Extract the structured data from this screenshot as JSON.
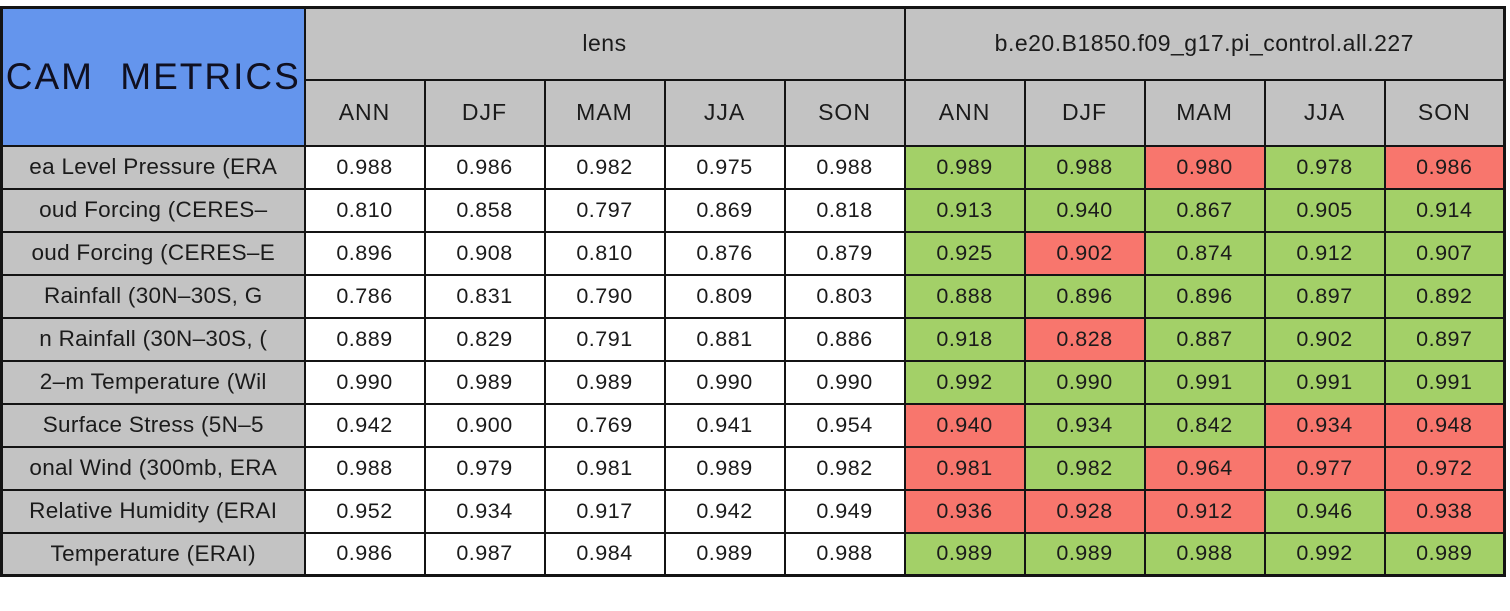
{
  "colors": {
    "title_bg": "#6495ed",
    "header_bg": "#c3c3c3",
    "neutral": "#ffffff",
    "good": "#a3d068",
    "bad": "#f8766d",
    "border": "#141414"
  },
  "chart_data": {
    "type": "table",
    "title": "CAM METRICS",
    "column_groups": [
      "lens",
      "b.e20.B1850.f09_g17.pi_control.all.227"
    ],
    "seasons": [
      "ANN",
      "DJF",
      "MAM",
      "JJA",
      "SON"
    ],
    "value_color_legend": {
      "good": "green",
      "bad": "red"
    },
    "rows": [
      {
        "label": "ea Level Pressure (ERA",
        "lens": [
          "0.988",
          "0.986",
          "0.982",
          "0.975",
          "0.988"
        ],
        "model": [
          "0.989",
          "0.988",
          "0.980",
          "0.978",
          "0.986"
        ],
        "model_colors": [
          "good",
          "good",
          "bad",
          "good",
          "bad"
        ]
      },
      {
        "label": "oud Forcing (CERES–",
        "lens": [
          "0.810",
          "0.858",
          "0.797",
          "0.869",
          "0.818"
        ],
        "model": [
          "0.913",
          "0.940",
          "0.867",
          "0.905",
          "0.914"
        ],
        "model_colors": [
          "good",
          "good",
          "good",
          "good",
          "good"
        ]
      },
      {
        "label": "oud Forcing (CERES–E",
        "lens": [
          "0.896",
          "0.908",
          "0.810",
          "0.876",
          "0.879"
        ],
        "model": [
          "0.925",
          "0.902",
          "0.874",
          "0.912",
          "0.907"
        ],
        "model_colors": [
          "good",
          "bad",
          "good",
          "good",
          "good"
        ]
      },
      {
        "label": "Rainfall (30N–30S, G",
        "lens": [
          "0.786",
          "0.831",
          "0.790",
          "0.809",
          "0.803"
        ],
        "model": [
          "0.888",
          "0.896",
          "0.896",
          "0.897",
          "0.892"
        ],
        "model_colors": [
          "good",
          "good",
          "good",
          "good",
          "good"
        ]
      },
      {
        "label": "n Rainfall (30N–30S, (",
        "lens": [
          "0.889",
          "0.829",
          "0.791",
          "0.881",
          "0.886"
        ],
        "model": [
          "0.918",
          "0.828",
          "0.887",
          "0.902",
          "0.897"
        ],
        "model_colors": [
          "good",
          "bad",
          "good",
          "good",
          "good"
        ]
      },
      {
        "label": "2–m Temperature (Wil",
        "lens": [
          "0.990",
          "0.989",
          "0.989",
          "0.990",
          "0.990"
        ],
        "model": [
          "0.992",
          "0.990",
          "0.991",
          "0.991",
          "0.991"
        ],
        "model_colors": [
          "good",
          "good",
          "good",
          "good",
          "good"
        ]
      },
      {
        "label": "Surface Stress (5N–5",
        "lens": [
          "0.942",
          "0.900",
          "0.769",
          "0.941",
          "0.954"
        ],
        "model": [
          "0.940",
          "0.934",
          "0.842",
          "0.934",
          "0.948"
        ],
        "model_colors": [
          "bad",
          "good",
          "good",
          "bad",
          "bad"
        ]
      },
      {
        "label": "onal Wind (300mb, ERA",
        "lens": [
          "0.988",
          "0.979",
          "0.981",
          "0.989",
          "0.982"
        ],
        "model": [
          "0.981",
          "0.982",
          "0.964",
          "0.977",
          "0.972"
        ],
        "model_colors": [
          "bad",
          "good",
          "bad",
          "bad",
          "bad"
        ]
      },
      {
        "label": "Relative Humidity (ERAI",
        "lens": [
          "0.952",
          "0.934",
          "0.917",
          "0.942",
          "0.949"
        ],
        "model": [
          "0.936",
          "0.928",
          "0.912",
          "0.946",
          "0.938"
        ],
        "model_colors": [
          "bad",
          "bad",
          "bad",
          "good",
          "bad"
        ]
      },
      {
        "label": "Temperature (ERAI)",
        "lens": [
          "0.986",
          "0.987",
          "0.984",
          "0.989",
          "0.988"
        ],
        "model": [
          "0.989",
          "0.989",
          "0.988",
          "0.992",
          "0.989"
        ],
        "model_colors": [
          "good",
          "good",
          "good",
          "good",
          "good"
        ]
      }
    ]
  }
}
